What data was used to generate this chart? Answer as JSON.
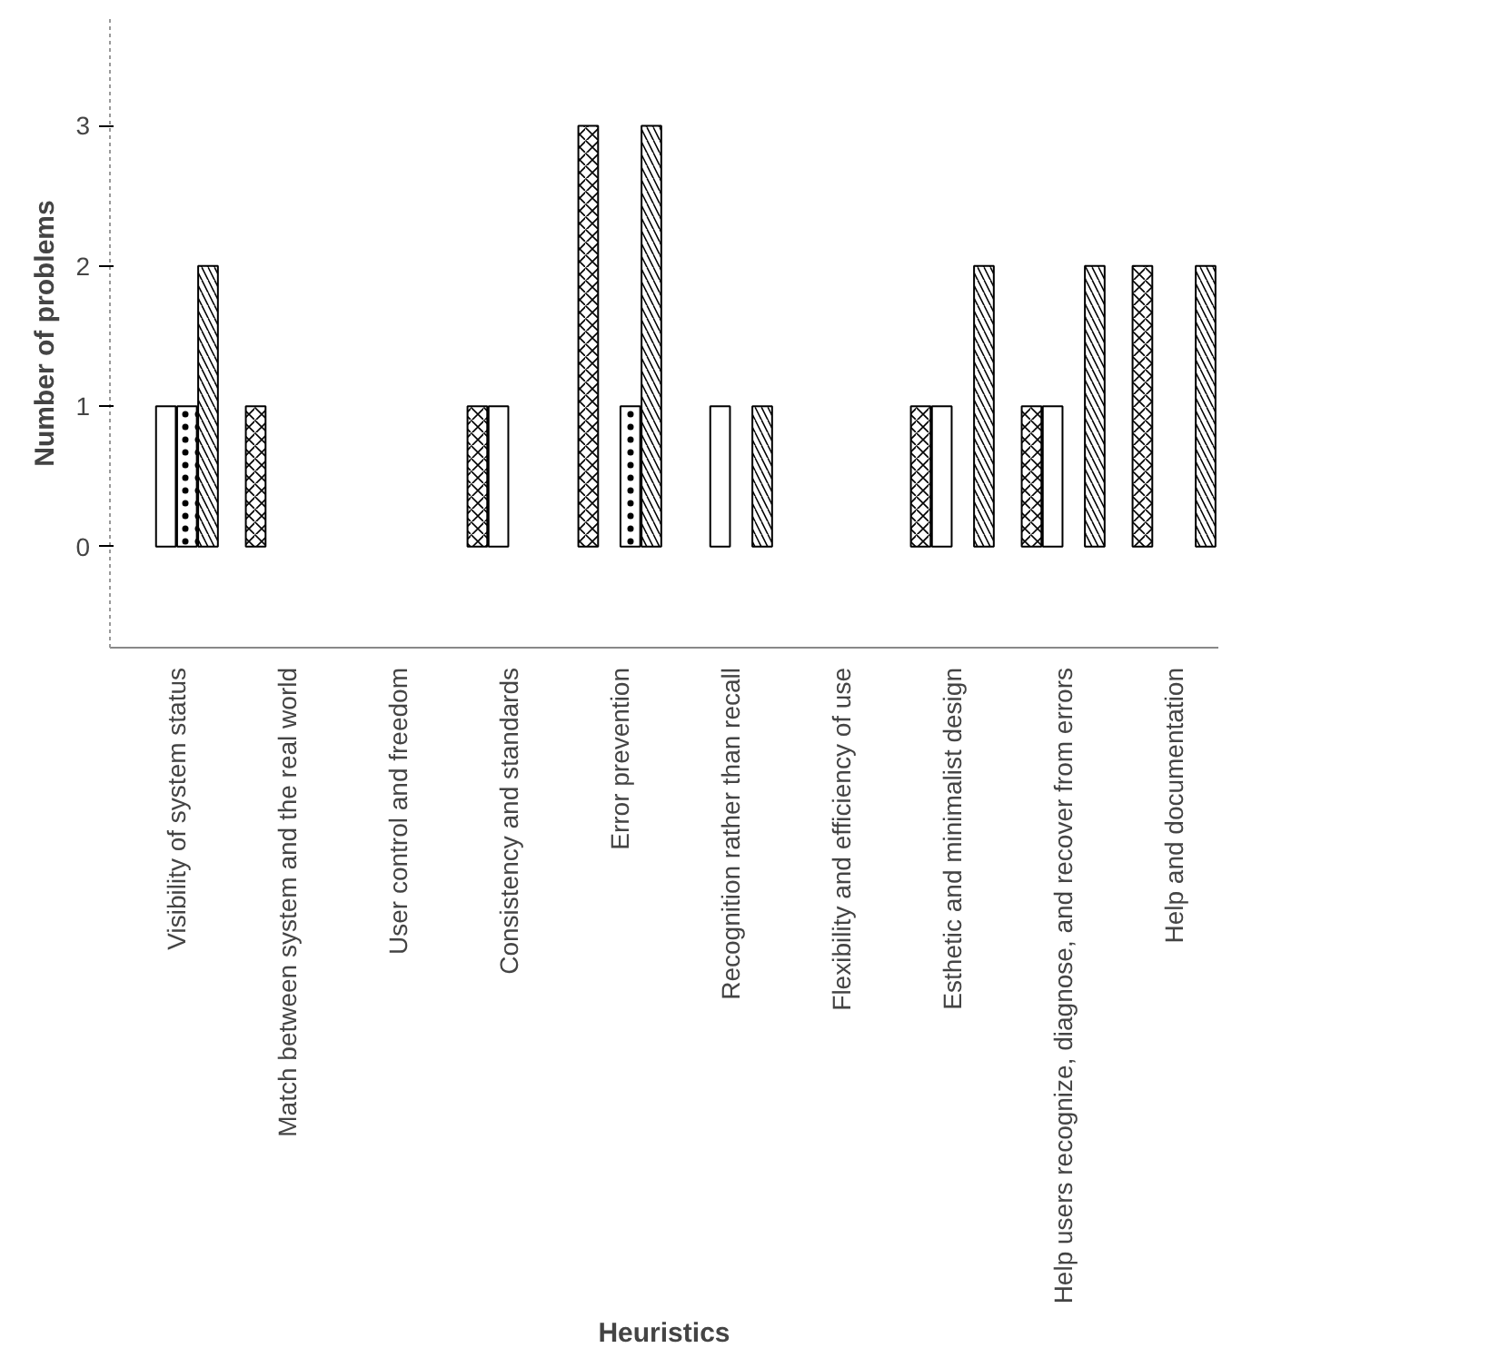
{
  "chart_data": {
    "type": "bar",
    "xlabel": "Heuristics",
    "ylabel": "Number of problems",
    "categories": [
      "Visibility of system status",
      "Match between system and the real world",
      "User control and freedom",
      "Consistency and standards",
      "Error prevention",
      "Recognition rather than recall",
      "Flexibility and efficiency of use",
      "Esthetic and minimalist design",
      "Help users recognize, diagnose, and recover from errors",
      "Help and documentation"
    ],
    "series": [
      {
        "color": "#ffffff",
        "values": [
          0,
          1,
          0,
          1,
          3,
          0,
          0,
          1,
          1,
          2
        ]
      },
      {
        "color": "#ffffff",
        "values": [
          1,
          0,
          0,
          1,
          0,
          1,
          0,
          1,
          1,
          0
        ]
      },
      {
        "color": "#ffffff",
        "values": [
          1,
          0,
          0,
          0,
          1,
          0,
          0,
          0,
          0,
          0
        ]
      },
      {
        "color": "#ffffff",
        "values": [
          2,
          0,
          0,
          0,
          3,
          1,
          0,
          2,
          2,
          2
        ]
      }
    ],
    "ylim": [
      -0.72,
      3.76
    ],
    "yticks": [
      0,
      1,
      2,
      3
    ],
    "grid": false
  }
}
